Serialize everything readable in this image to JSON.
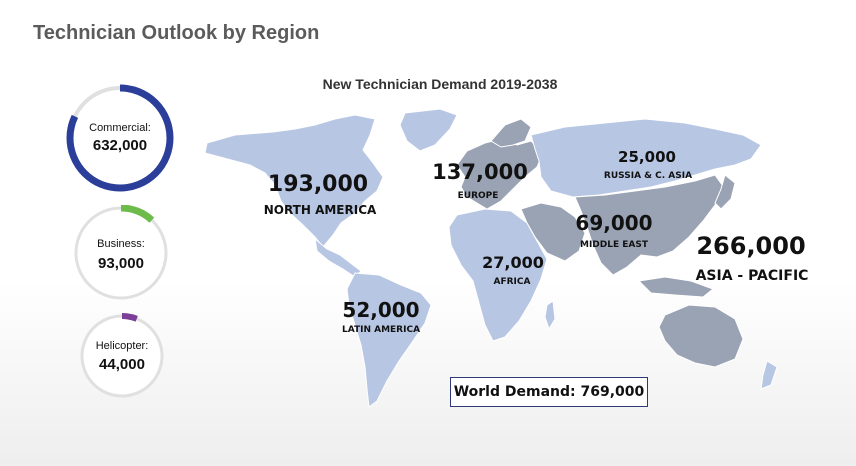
{
  "page_title": "Technician Outlook by Region",
  "chart_data": [
    {
      "type": "donut",
      "segments": [
        {
          "label": "Commercial:",
          "value": "632,000",
          "share": 0.82,
          "color": "#2b3f9a"
        },
        {
          "label": "Business:",
          "value": "93,000",
          "share": 0.12,
          "color": "#6cbb4b"
        },
        {
          "label": "Helicopter:",
          "value": "44,000",
          "share": 0.06,
          "color": "#7b3f98"
        }
      ],
      "track_color": "#e0e0e0"
    },
    {
      "type": "map",
      "title": "New Technician Demand 2019-2038",
      "regions": [
        {
          "name": "NORTH AMERICA",
          "value": "193,000"
        },
        {
          "name": "EUROPE",
          "value": "137,000"
        },
        {
          "name": "RUSSIA & C. ASIA",
          "value": "25,000"
        },
        {
          "name": "MIDDLE EAST",
          "value": "69,000"
        },
        {
          "name": "ASIA - PACIFIC",
          "value": "266,000"
        },
        {
          "name": "AFRICA",
          "value": "27,000"
        },
        {
          "name": "LATIN AMERICA",
          "value": "52,000"
        }
      ],
      "total": "World Demand: 769,000",
      "colors": {
        "land": "#b7c6e3",
        "highlight": "#9aa3b3",
        "outline": "#ffffff"
      }
    }
  ]
}
